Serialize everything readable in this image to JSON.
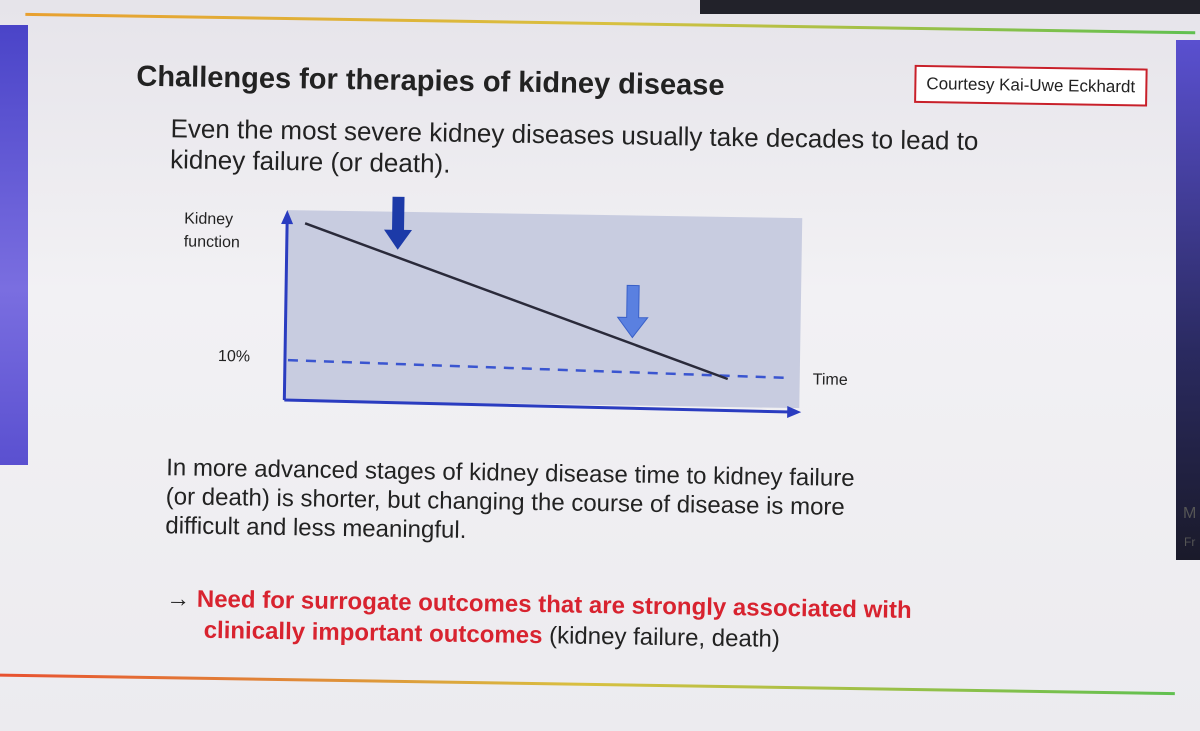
{
  "slide": {
    "title": "Challenges for therapies of kidney disease",
    "courtesy": "Courtesy Kai-Uwe Eckhardt",
    "paragraph1": [
      "Even the most severe kidney diseases usually take decades to lead to",
      "kidney failure (or death)."
    ],
    "diagram": {
      "y_axis_label": [
        "Kidney",
        "function"
      ],
      "threshold_label": "10%",
      "x_axis_label": "Time"
    },
    "paragraph2": [
      "In more advanced stages of kidney disease time to kidney failure",
      "(or death) is shorter, but changing the course of disease is more",
      "difficult and less meaningful."
    ],
    "conclusion": {
      "arrow": "→",
      "emphasis": [
        "Need for surrogate outcomes that are strongly associated with",
        "clinically important outcomes"
      ],
      "note": "(kidney failure, death)"
    }
  },
  "side_texts": [
    "M",
    "Fr"
  ]
}
